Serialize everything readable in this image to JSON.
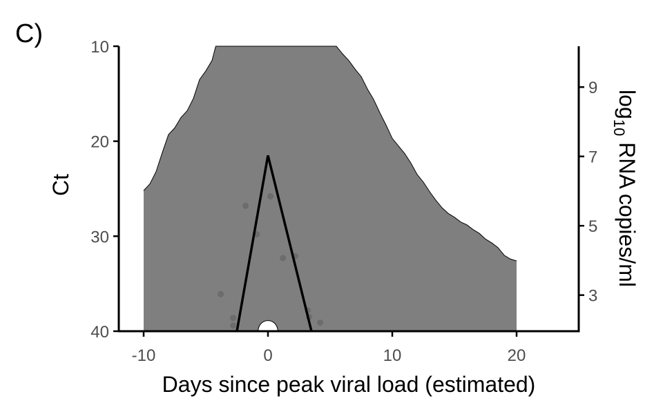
{
  "panel_label": "C)",
  "colors": {
    "band": "#7f7f7f",
    "band_edge": "#000000",
    "trajectory": "#000000",
    "points": "#666666",
    "axis": "#000000",
    "tick_text": "#4d4d4d"
  },
  "chart_data": {
    "type": "area",
    "title": "",
    "xlabel": "Days since peak viral load (estimated)",
    "ylabel": "Ct",
    "y2label_parts": {
      "base": "log",
      "sub": "10",
      "rest": " RNA copies/ml"
    },
    "xlim": [
      -12,
      25
    ],
    "ylim": [
      10,
      40
    ],
    "y_reversed": true,
    "grid": false,
    "legend": "none",
    "x_ticks": [
      -10,
      0,
      10,
      20
    ],
    "x_tick_labels": [
      "-10",
      "0",
      "10",
      "20"
    ],
    "y_ticks": [
      10,
      20,
      30,
      40
    ],
    "y_tick_labels": [
      "10",
      "20",
      "30",
      "40"
    ],
    "y2_ticks": [
      {
        "label": "9",
        "ct": 14.3
      },
      {
        "label": "7",
        "ct": 21.6
      },
      {
        "label": "5",
        "ct": 28.9
      },
      {
        "label": "3",
        "ct": 36.2
      }
    ],
    "band_upper": [
      {
        "x": -10,
        "y": 25.2
      },
      {
        "x": -9.5,
        "y": 24.5
      },
      {
        "x": -9,
        "y": 23.2
      },
      {
        "x": -8.5,
        "y": 21.2
      },
      {
        "x": -8,
        "y": 19.3
      },
      {
        "x": -7.5,
        "y": 18.6
      },
      {
        "x": -7,
        "y": 17.5
      },
      {
        "x": -6.5,
        "y": 16.8
      },
      {
        "x": -6,
        "y": 15.5
      },
      {
        "x": -5.5,
        "y": 13.5
      },
      {
        "x": -5,
        "y": 12.6
      },
      {
        "x": -4.5,
        "y": 11.5
      },
      {
        "x": -4.2,
        "y": 10.0
      },
      {
        "x": 5.5,
        "y": 10.0
      },
      {
        "x": 6,
        "y": 10.8
      },
      {
        "x": 6.5,
        "y": 11.5
      },
      {
        "x": 7,
        "y": 12.4
      },
      {
        "x": 7.5,
        "y": 13.2
      },
      {
        "x": 8,
        "y": 14.5
      },
      {
        "x": 8.5,
        "y": 15.6
      },
      {
        "x": 9,
        "y": 17.0
      },
      {
        "x": 9.5,
        "y": 18.3
      },
      {
        "x": 10,
        "y": 19.7
      },
      {
        "x": 10.5,
        "y": 20.5
      },
      {
        "x": 11,
        "y": 21.3
      },
      {
        "x": 11.5,
        "y": 22.3
      },
      {
        "x": 12,
        "y": 23.5
      },
      {
        "x": 12.5,
        "y": 24.3
      },
      {
        "x": 13,
        "y": 25.3
      },
      {
        "x": 13.5,
        "y": 26.2
      },
      {
        "x": 14,
        "y": 27.0
      },
      {
        "x": 14.5,
        "y": 27.6
      },
      {
        "x": 15,
        "y": 28.0
      },
      {
        "x": 15.5,
        "y": 28.5
      },
      {
        "x": 16,
        "y": 28.8
      },
      {
        "x": 16.5,
        "y": 29.3
      },
      {
        "x": 17,
        "y": 29.7
      },
      {
        "x": 17.5,
        "y": 30.3
      },
      {
        "x": 18,
        "y": 30.7
      },
      {
        "x": 18.5,
        "y": 31.2
      },
      {
        "x": 19,
        "y": 32.0
      },
      {
        "x": 19.5,
        "y": 32.4
      },
      {
        "x": 20,
        "y": 32.6
      }
    ],
    "band_lower_y": 40,
    "trajectory": [
      {
        "x": -2.5,
        "y": 40
      },
      {
        "x": 0,
        "y": 21.5
      },
      {
        "x": 3.5,
        "y": 40
      }
    ],
    "notch": {
      "x_start": -0.8,
      "x_end": 0.8,
      "peak_ct": 38.8
    },
    "points": [
      {
        "x": -3.8,
        "y": 36.1
      },
      {
        "x": -2.8,
        "y": 38.6
      },
      {
        "x": -2.8,
        "y": 39.4
      },
      {
        "x": -1.8,
        "y": 26.8
      },
      {
        "x": -0.9,
        "y": 29.8
      },
      {
        "x": 0.2,
        "y": 25.8
      },
      {
        "x": 1.2,
        "y": 32.3
      },
      {
        "x": 2.2,
        "y": 32.1
      },
      {
        "x": 3.2,
        "y": 37.8
      },
      {
        "x": 3.3,
        "y": 38.5
      },
      {
        "x": 4.2,
        "y": 39.1
      }
    ]
  }
}
